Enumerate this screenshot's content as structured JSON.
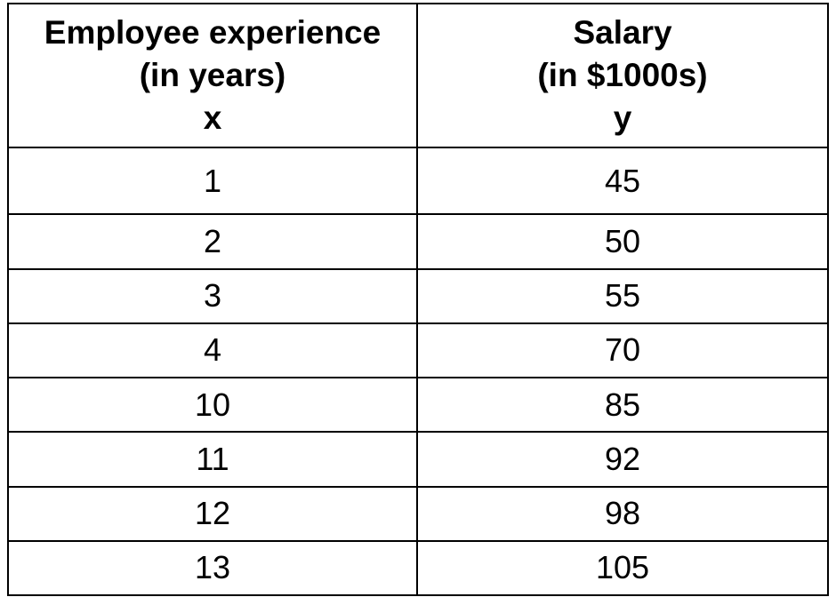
{
  "table": {
    "headers": [
      {
        "line1": "Employee experience",
        "line2": "(in years)",
        "symbol": "x"
      },
      {
        "line1": "Salary",
        "line2": "(in $1000s)",
        "symbol": "y"
      }
    ],
    "rows": [
      {
        "x": "1",
        "y": "45"
      },
      {
        "x": "2",
        "y": "50"
      },
      {
        "x": "3",
        "y": "55"
      },
      {
        "x": "4",
        "y": "70"
      },
      {
        "x": "10",
        "y": "85"
      },
      {
        "x": "11",
        "y": "92"
      },
      {
        "x": "12",
        "y": "98"
      },
      {
        "x": "13",
        "y": "105"
      }
    ]
  }
}
